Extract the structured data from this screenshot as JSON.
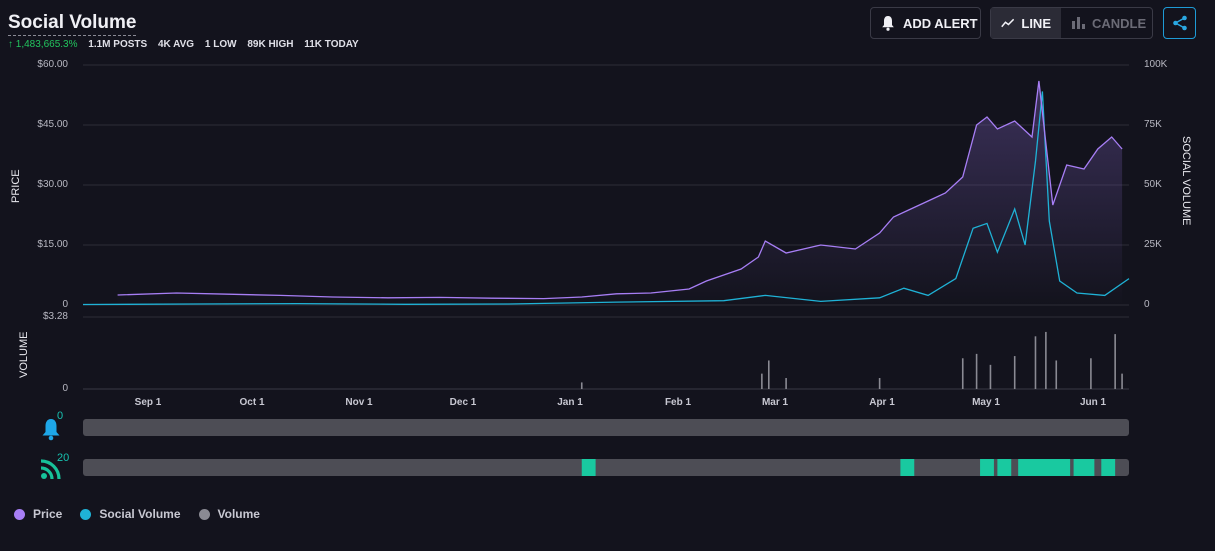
{
  "header": {
    "title": "Social Volume",
    "stats": {
      "change": "↑ 1,483,665.3%",
      "posts": "1.1M POSTS",
      "avg": "4K AVG",
      "low": "1 LOW",
      "high": "89K HIGH",
      "today": "11K TODAY"
    },
    "add_alert_label": "ADD ALERT",
    "line_label": "LINE",
    "candle_label": "CANDLE"
  },
  "icons": {
    "bell": "bell-icon",
    "line": "line-chart-icon",
    "candle": "candle-chart-icon",
    "share": "share-icon",
    "alert_bell": "alert-bell-icon",
    "feed": "rss-feed-icon"
  },
  "colors": {
    "price": "#a77ef5",
    "social_volume": "#1fb2d6",
    "volume": "#8a8a93",
    "alert_bell": "#1ea7e8",
    "feed": "#17c29a",
    "feed_highlight": "#19c9a0"
  },
  "axes": {
    "price_label": "PRICE",
    "social_label": "SOCIAL VOLUME",
    "volume_label": "VOLUME",
    "price_ticks": [
      "$60.00",
      "$45.00",
      "$30.00",
      "$15.00",
      "0"
    ],
    "social_ticks": [
      "100K",
      "75K",
      "50K",
      "25K",
      "0"
    ],
    "volume_ticks": [
      "$3.28",
      "0"
    ],
    "months": [
      "Sep 1",
      "Oct 1",
      "Nov 1",
      "Dec 1",
      "Jan 1",
      "Feb 1",
      "Mar 1",
      "Apr 1",
      "May 1",
      "Jun 1"
    ]
  },
  "tracks": {
    "alerts_count": "0",
    "feed_count": "20"
  },
  "legend": {
    "price": "Price",
    "social": "Social Volume",
    "volume": "Volume"
  },
  "chart_data": {
    "type": "line",
    "x_range": [
      "2020-08-14",
      "2021-06-12"
    ],
    "y_price_range": [
      0,
      60
    ],
    "y_social_range": [
      0,
      100000
    ],
    "y_volume_range": [
      0,
      3.28
    ],
    "series": [
      {
        "name": "Price",
        "axis": "left",
        "points": [
          [
            "2020-08-24",
            2.5
          ],
          [
            "2020-09-10",
            3.0
          ],
          [
            "2020-09-25",
            2.7
          ],
          [
            "2020-10-10",
            2.4
          ],
          [
            "2020-10-25",
            2.0
          ],
          [
            "2020-11-10",
            1.8
          ],
          [
            "2020-11-25",
            1.9
          ],
          [
            "2020-12-10",
            1.7
          ],
          [
            "2020-12-25",
            1.6
          ],
          [
            "2021-01-05",
            2.0
          ],
          [
            "2021-01-15",
            2.8
          ],
          [
            "2021-01-25",
            3.0
          ],
          [
            "2021-02-05",
            4.0
          ],
          [
            "2021-02-10",
            6.0
          ],
          [
            "2021-02-20",
            9.0
          ],
          [
            "2021-02-25",
            12.0
          ],
          [
            "2021-02-27",
            16.0
          ],
          [
            "2021-03-05",
            13.0
          ],
          [
            "2021-03-15",
            15.0
          ],
          [
            "2021-03-25",
            14.0
          ],
          [
            "2021-04-01",
            18.0
          ],
          [
            "2021-04-05",
            22.0
          ],
          [
            "2021-04-10",
            24.0
          ],
          [
            "2021-04-15",
            26.0
          ],
          [
            "2021-04-20",
            28.0
          ],
          [
            "2021-04-25",
            32.0
          ],
          [
            "2021-04-29",
            45.0
          ],
          [
            "2021-05-02",
            47.0
          ],
          [
            "2021-05-05",
            44.0
          ],
          [
            "2021-05-10",
            46.0
          ],
          [
            "2021-05-15",
            42.0
          ],
          [
            "2021-05-17",
            56.0
          ],
          [
            "2021-05-21",
            25.0
          ],
          [
            "2021-05-25",
            35.0
          ],
          [
            "2021-05-30",
            34.0
          ],
          [
            "2021-06-03",
            39.0
          ],
          [
            "2021-06-07",
            42.0
          ],
          [
            "2021-06-10",
            39.0
          ]
        ]
      },
      {
        "name": "Social Volume",
        "axis": "right",
        "points": [
          [
            "2020-08-14",
            200
          ],
          [
            "2020-09-15",
            400
          ],
          [
            "2020-10-15",
            600
          ],
          [
            "2020-11-15",
            300
          ],
          [
            "2020-12-15",
            400
          ],
          [
            "2021-01-15",
            1200
          ],
          [
            "2021-02-15",
            1800
          ],
          [
            "2021-02-27",
            4000
          ],
          [
            "2021-03-15",
            1500
          ],
          [
            "2021-04-01",
            3000
          ],
          [
            "2021-04-08",
            7000
          ],
          [
            "2021-04-15",
            4000
          ],
          [
            "2021-04-23",
            11000
          ],
          [
            "2021-04-28",
            32000
          ],
          [
            "2021-05-02",
            34000
          ],
          [
            "2021-05-05",
            22000
          ],
          [
            "2021-05-10",
            40000
          ],
          [
            "2021-05-13",
            25000
          ],
          [
            "2021-05-16",
            60000
          ],
          [
            "2021-05-18",
            89000
          ],
          [
            "2021-05-20",
            35000
          ],
          [
            "2021-05-23",
            10000
          ],
          [
            "2021-05-28",
            5000
          ],
          [
            "2021-06-05",
            4000
          ],
          [
            "2021-06-12",
            11000
          ]
        ]
      },
      {
        "name": "Volume",
        "type": "bar",
        "points": [
          [
            "2021-01-05",
            0.3
          ],
          [
            "2021-02-26",
            0.7
          ],
          [
            "2021-02-28",
            1.3
          ],
          [
            "2021-03-05",
            0.5
          ],
          [
            "2021-04-01",
            0.5
          ],
          [
            "2021-04-25",
            1.4
          ],
          [
            "2021-04-29",
            1.6
          ],
          [
            "2021-05-03",
            1.1
          ],
          [
            "2021-05-10",
            1.5
          ],
          [
            "2021-05-16",
            2.4
          ],
          [
            "2021-05-19",
            2.6
          ],
          [
            "2021-05-22",
            1.3
          ],
          [
            "2021-06-01",
            1.4
          ],
          [
            "2021-06-08",
            2.5
          ],
          [
            "2021-06-10",
            0.7
          ]
        ]
      }
    ],
    "feed_events": [
      [
        "2021-01-05",
        "2021-01-09"
      ],
      [
        "2021-04-07",
        "2021-04-11"
      ],
      [
        "2021-04-30",
        "2021-05-04"
      ],
      [
        "2021-05-05",
        "2021-05-09"
      ],
      [
        "2021-05-11",
        "2021-05-26"
      ],
      [
        "2021-05-27",
        "2021-06-02"
      ],
      [
        "2021-06-04",
        "2021-06-08"
      ]
    ]
  }
}
